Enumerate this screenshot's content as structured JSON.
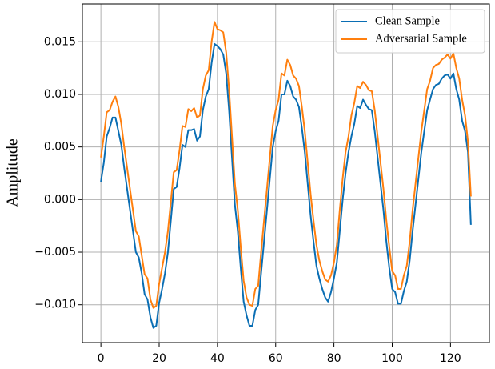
{
  "chart_data": {
    "type": "line",
    "ylabel": "Amplitude",
    "x": [
      0,
      1,
      2,
      3,
      4,
      5,
      6,
      7,
      8,
      9,
      10,
      11,
      12,
      13,
      14,
      15,
      16,
      17,
      18,
      19,
      20,
      21,
      22,
      23,
      24,
      25,
      26,
      27,
      28,
      29,
      30,
      31,
      32,
      33,
      34,
      35,
      36,
      37,
      38,
      39,
      40,
      41,
      42,
      43,
      44,
      45,
      46,
      47,
      48,
      49,
      50,
      51,
      52,
      53,
      54,
      55,
      56,
      57,
      58,
      59,
      60,
      61,
      62,
      63,
      64,
      65,
      66,
      67,
      68,
      69,
      70,
      71,
      72,
      73,
      74,
      75,
      76,
      77,
      78,
      79,
      80,
      81,
      82,
      83,
      84,
      85,
      86,
      87,
      88,
      89,
      90,
      91,
      92,
      93,
      94,
      95,
      96,
      97,
      98,
      99,
      100,
      101,
      102,
      103,
      104,
      105,
      106,
      107,
      108,
      109,
      110,
      111,
      112,
      113,
      114,
      115,
      116,
      117,
      118,
      119,
      120,
      121,
      122,
      123,
      124,
      125,
      126,
      127
    ],
    "series": [
      {
        "name": "Clean Sample",
        "color": "#0a6eb4",
        "values": [
          0.0017,
          0.0035,
          0.006,
          0.0068,
          0.0078,
          0.0078,
          0.0065,
          0.0052,
          0.003,
          0.001,
          -0.001,
          -0.003,
          -0.005,
          -0.0055,
          -0.007,
          -0.009,
          -0.0095,
          -0.0112,
          -0.0122,
          -0.012,
          -0.0098,
          -0.0085,
          -0.007,
          -0.005,
          -0.002,
          0.001,
          0.0012,
          0.003,
          0.0052,
          0.005,
          0.0066,
          0.0066,
          0.0067,
          0.0056,
          0.006,
          0.0085,
          0.0098,
          0.0105,
          0.013,
          0.0148,
          0.0146,
          0.0143,
          0.0138,
          0.012,
          0.0085,
          0.004,
          -0.0005,
          -0.003,
          -0.0065,
          -0.0097,
          -0.011,
          -0.012,
          -0.012,
          -0.0105,
          -0.01,
          -0.007,
          -0.004,
          -0.001,
          0.002,
          0.005,
          0.0065,
          0.0075,
          0.01,
          0.01,
          0.0113,
          0.0108,
          0.0098,
          0.0095,
          0.0088,
          0.0068,
          0.0045,
          0.0015,
          -0.0015,
          -0.004,
          -0.0063,
          -0.0075,
          -0.0085,
          -0.0093,
          -0.0097,
          -0.0088,
          -0.0075,
          -0.006,
          -0.003,
          0,
          0.0025,
          0.0045,
          0.006,
          0.0072,
          0.0089,
          0.0087,
          0.0095,
          0.009,
          0.0086,
          0.0085,
          0.0065,
          0.004,
          0.0015,
          -0.001,
          -0.004,
          -0.0065,
          -0.0085,
          -0.0088,
          -0.0099,
          -0.0099,
          -0.0087,
          -0.0078,
          -0.0058,
          -0.003,
          -0.0005,
          0.002,
          0.0045,
          0.0065,
          0.0085,
          0.0095,
          0.0105,
          0.0109,
          0.011,
          0.0115,
          0.0118,
          0.0119,
          0.0115,
          0.012,
          0.0105,
          0.0095,
          0.0075,
          0.0065,
          0.0045,
          -0.0024
        ]
      },
      {
        "name": "Adversarial Sample",
        "color": "#ff7f0e",
        "values": [
          0.004,
          0.006,
          0.0083,
          0.0085,
          0.0093,
          0.0098,
          0.0088,
          0.0072,
          0.005,
          0.003,
          0.001,
          -0.001,
          -0.003,
          -0.0035,
          -0.0053,
          -0.0071,
          -0.0075,
          -0.0095,
          -0.0103,
          -0.0101,
          -0.008,
          -0.0065,
          -0.005,
          -0.003,
          -0.0002,
          0.0026,
          0.0028,
          0.0047,
          0.007,
          0.0069,
          0.0086,
          0.0084,
          0.0087,
          0.0078,
          0.008,
          0.0105,
          0.0118,
          0.0123,
          0.015,
          0.0169,
          0.0162,
          0.0161,
          0.0159,
          0.014,
          0.0105,
          0.006,
          0.0015,
          -0.001,
          -0.0045,
          -0.0077,
          -0.0093,
          -0.01,
          -0.0101,
          -0.0085,
          -0.0082,
          -0.005,
          -0.002,
          0.001,
          0.004,
          0.007,
          0.0085,
          0.0095,
          0.012,
          0.0118,
          0.0133,
          0.0128,
          0.0118,
          0.0115,
          0.0108,
          0.0088,
          0.0065,
          0.0035,
          0.0005,
          -0.002,
          -0.0043,
          -0.0058,
          -0.0068,
          -0.0076,
          -0.0078,
          -0.0072,
          -0.006,
          -0.0043,
          -0.001,
          0.002,
          0.0045,
          0.006,
          0.008,
          0.0092,
          0.0108,
          0.0106,
          0.0112,
          0.0109,
          0.0104,
          0.0103,
          0.0085,
          0.006,
          0.0035,
          0.001,
          -0.002,
          -0.0045,
          -0.0068,
          -0.0072,
          -0.0085,
          -0.0085,
          -0.0072,
          -0.0063,
          -0.004,
          -0.001,
          0.0015,
          0.004,
          0.0065,
          0.0085,
          0.0105,
          0.0113,
          0.0125,
          0.0128,
          0.0129,
          0.0133,
          0.0135,
          0.0138,
          0.0134,
          0.0139,
          0.0125,
          0.0115,
          0.0095,
          0.008,
          0.0055,
          0.0003
        ]
      }
    ],
    "xlim": [
      -6.35,
      133.35
    ],
    "xticks": [
      0,
      20,
      40,
      60,
      80,
      100,
      120
    ],
    "ylim": [
      -0.0136,
      0.0186
    ],
    "yticks": [
      {
        "value": -0.01,
        "label": "−0.010"
      },
      {
        "value": -0.005,
        "label": "−0.005"
      },
      {
        "value": 0,
        "label": "0.000"
      },
      {
        "value": 0.005,
        "label": "0.005"
      },
      {
        "value": 0.01,
        "label": "0.010"
      },
      {
        "value": 0.015,
        "label": "0.015"
      }
    ],
    "grid": true,
    "legend": "upper right"
  }
}
